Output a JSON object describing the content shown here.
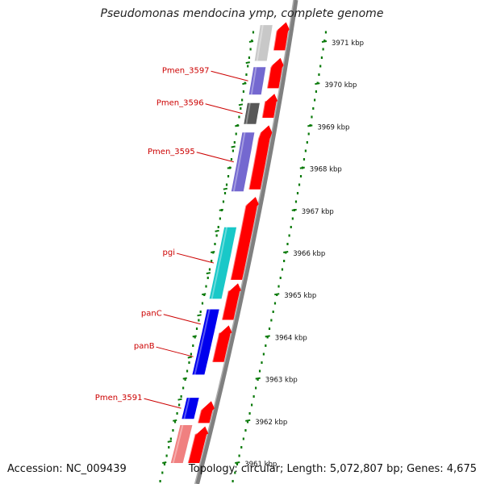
{
  "title": "Pseudomonas mendocina ymp, complete genome",
  "accession": "Accession: NC_009439",
  "topology": "Topology: circular; Length: 5,072,807 bp; Genes: 4,675",
  "colors": {
    "forward_cds": "#ff0000",
    "gene_label": "#cc0000",
    "backbone": "#808080",
    "tick": "#0a7a0a",
    "cog_salmon": "#f08080",
    "cog_light_gray": "#c8c8c8",
    "cog_slate_blue": "#7468d0",
    "cog_dark_gray": "#585858",
    "cog_cyan": "#19c8c8",
    "cog_blue": "#0000ee"
  },
  "scale": {
    "unit": "kbp",
    "ticks": [
      {
        "kbp": 3971,
        "label": "3971 kbp"
      },
      {
        "kbp": 3970,
        "label": "3970 kbp"
      },
      {
        "kbp": 3969,
        "label": "3969 kbp"
      },
      {
        "kbp": 3968,
        "label": "3968 kbp"
      },
      {
        "kbp": 3967,
        "label": "3967 kbp"
      },
      {
        "kbp": 3966,
        "label": "3966 kbp"
      },
      {
        "kbp": 3965,
        "label": "3965 kbp"
      },
      {
        "kbp": 3964,
        "label": "3964 kbp"
      },
      {
        "kbp": 3963,
        "label": "3963 kbp"
      },
      {
        "kbp": 3962,
        "label": "3962 kbp"
      },
      {
        "kbp": 3961,
        "label": "3961 kbp"
      }
    ]
  },
  "forward_genes": [
    {
      "start": 3971.45,
      "end": 3970.8
    },
    {
      "start": 3970.6,
      "end": 3969.9
    },
    {
      "start": 3969.75,
      "end": 3969.2
    },
    {
      "start": 3969.0,
      "end": 3967.5
    },
    {
      "start": 3967.3,
      "end": 3965.35
    },
    {
      "start": 3965.25,
      "end": 3964.4
    },
    {
      "start": 3964.25,
      "end": 3963.4
    },
    {
      "start": 3962.45,
      "end": 3961.95
    },
    {
      "start": 3961.85,
      "end": 3961.0
    }
  ],
  "cog_genes": [
    {
      "start": 3971.4,
      "end": 3970.55,
      "color": "#c8c8c8"
    },
    {
      "start": 3970.4,
      "end": 3969.75,
      "color": "#7468d0",
      "label": "Pmen_3597"
    },
    {
      "start": 3969.55,
      "end": 3969.05,
      "color": "#585858",
      "label": "Pmen_3596"
    },
    {
      "start": 3968.85,
      "end": 3967.45,
      "color": "#7468d0",
      "label": "Pmen_3595"
    },
    {
      "start": 3966.6,
      "end": 3964.9,
      "color": "#19c8c8",
      "label": "pgi"
    },
    {
      "start": 3964.65,
      "end": 3963.95,
      "color": "#0000ee",
      "label": "panC"
    },
    {
      "start": 3963.95,
      "end": 3963.1,
      "color": "#0000ee",
      "label": "panB"
    },
    {
      "start": 3962.55,
      "end": 3962.05,
      "color": "#0000ee",
      "label": "Pmen_3591"
    },
    {
      "start": 3961.9,
      "end": 3961.0,
      "color": "#f08080"
    }
  ]
}
